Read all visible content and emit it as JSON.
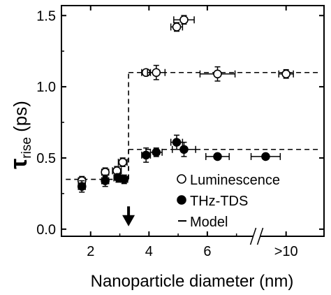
{
  "chart_data": {
    "type": "scatter",
    "xlabel": "Nanoparticle diameter (nm)",
    "ylabel_main": "τ",
    "ylabel_sub": "rise",
    "ylabel_unit": " (ps)",
    "xlim": [
      1.0,
      10.0
    ],
    "ylim": [
      -0.05,
      1.57
    ],
    "x_axis_break": true,
    "grid": false,
    "legend_position": "bottom-right",
    "x_ticks": [
      {
        "value": 2,
        "label": "2"
      },
      {
        "value": 4,
        "label": "4"
      },
      {
        "value": 6,
        "label": "6"
      },
      {
        "value": 8.7,
        "label": ">10"
      }
    ],
    "y_ticks": [
      {
        "value": 0.0,
        "label": "0.0"
      },
      {
        "value": 0.5,
        "label": "0.5"
      },
      {
        "value": 1.0,
        "label": "1.0"
      },
      {
        "value": 1.5,
        "label": "1.5"
      }
    ],
    "series": [
      {
        "name": "Luminescence",
        "marker": "open-circle",
        "points": [
          {
            "x": 1.7,
            "y": 0.34,
            "xerr": 0.12,
            "yerr": 0.03
          },
          {
            "x": 2.5,
            "y": 0.4,
            "xerr": 0.12,
            "yerr": 0.03
          },
          {
            "x": 2.9,
            "y": 0.41,
            "xerr": 0.15,
            "yerr": 0.03
          },
          {
            "x": 3.1,
            "y": 0.47,
            "xerr": 0.15,
            "yerr": 0.03
          },
          {
            "x": 3.9,
            "y": 1.1,
            "xerr": 0.15,
            "yerr": 0.02
          },
          {
            "x": 4.25,
            "y": 1.1,
            "xerr": 0.3,
            "yerr": 0.05
          },
          {
            "x": 4.95,
            "y": 1.42,
            "xerr": 0.2,
            "yerr": 0.03
          },
          {
            "x": 5.2,
            "y": 1.47,
            "xerr": 0.35,
            "yerr": 0.03
          },
          {
            "x": 6.35,
            "y": 1.09,
            "xerr": 0.6,
            "yerr": 0.05
          },
          {
            "x": 8.7,
            "y": 1.09,
            "xerr": 0.25,
            "yerr": 0.03
          }
        ]
      },
      {
        "name": "THz-TDS",
        "marker": "filled-circle",
        "points": [
          {
            "x": 1.7,
            "y": 0.3,
            "xerr": 0.12,
            "yerr": 0.04
          },
          {
            "x": 2.5,
            "y": 0.34,
            "xerr": 0.12,
            "yerr": 0.04
          },
          {
            "x": 2.95,
            "y": 0.36,
            "xerr": 0.15,
            "yerr": 0.03
          },
          {
            "x": 3.15,
            "y": 0.35,
            "xerr": 0.12,
            "yerr": 0.03
          },
          {
            "x": 3.9,
            "y": 0.52,
            "xerr": 0.15,
            "yerr": 0.05
          },
          {
            "x": 4.25,
            "y": 0.54,
            "xerr": 0.2,
            "yerr": 0.03
          },
          {
            "x": 4.95,
            "y": 0.61,
            "xerr": 0.2,
            "yerr": 0.05
          },
          {
            "x": 5.2,
            "y": 0.56,
            "xerr": 0.4,
            "yerr": 0.05
          },
          {
            "x": 6.35,
            "y": 0.51,
            "xerr": 0.4,
            "yerr": 0.02
          },
          {
            "x": 8.0,
            "y": 0.51,
            "xerr": 0.5,
            "yerr": 0.02
          }
        ]
      }
    ],
    "model": {
      "name": "Model",
      "style": "dashed",
      "segments": [
        {
          "x": [
            1.15,
            3.3
          ],
          "y": [
            0.35,
            0.35
          ]
        },
        {
          "x": [
            3.3,
            3.3
          ],
          "y": [
            0.35,
            1.1
          ]
        },
        {
          "x": [
            3.3,
            9.9
          ],
          "y": [
            1.1,
            1.1
          ]
        },
        {
          "x": [
            3.3,
            3.3
          ],
          "y": [
            0.35,
            0.56
          ]
        },
        {
          "x": [
            3.3,
            9.9
          ],
          "y": [
            0.56,
            0.56
          ]
        }
      ]
    },
    "annotations": [
      {
        "type": "arrow-down",
        "x": 3.3,
        "y_from": 0.16,
        "y_to": 0.02
      }
    ]
  }
}
